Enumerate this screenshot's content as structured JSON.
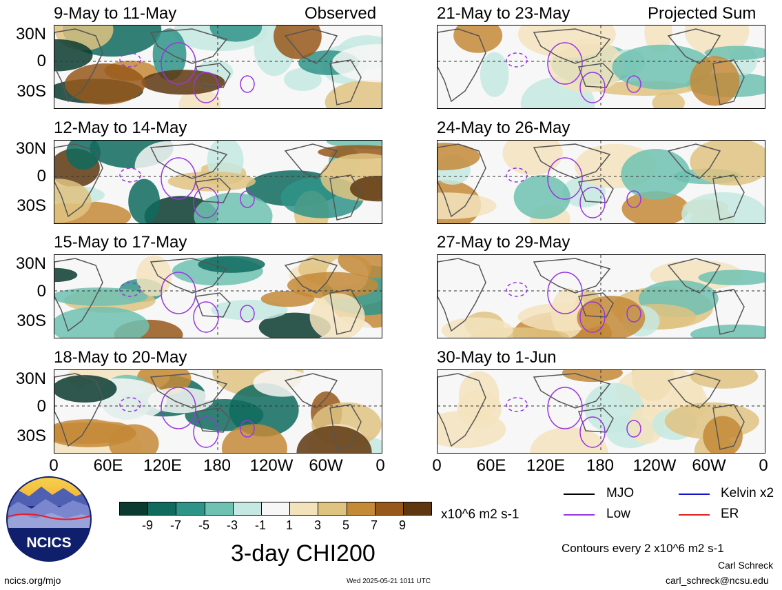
{
  "header": {
    "left_tag": "Observed",
    "right_tag": "Projected Sum"
  },
  "panels_left": [
    {
      "title": "9-May to 11-May"
    },
    {
      "title": "12-May to 14-May"
    },
    {
      "title": "15-May to 17-May"
    },
    {
      "title": "18-May to 20-May"
    }
  ],
  "panels_right": [
    {
      "title": "21-May to 23-May"
    },
    {
      "title": "24-May to 26-May"
    },
    {
      "title": "27-May to 29-May"
    },
    {
      "title": "30-May to 1-Jun"
    }
  ],
  "axes": {
    "lat_labels": [
      "30N",
      "0",
      "30S"
    ],
    "lon_labels": [
      "0",
      "60E",
      "120E",
      "180",
      "120W",
      "60W",
      "0"
    ]
  },
  "colorbar": {
    "ticks": [
      "-9",
      "-7",
      "-5",
      "-3",
      "-1",
      "1",
      "3",
      "5",
      "7",
      "9"
    ],
    "units": "x10^6 m2 s-1",
    "colors": [
      "#0b3b30",
      "#0f6b5e",
      "#2f9488",
      "#6fc1b2",
      "#c5e9e2",
      "#f7f7f7",
      "#f3e3bd",
      "#dfc381",
      "#c48a38",
      "#98581b",
      "#5e3710"
    ]
  },
  "legend": {
    "items": [
      {
        "label": "MJO",
        "color": "#000000"
      },
      {
        "label": "Kelvin x2",
        "color": "#1515cc"
      },
      {
        "label": "Low",
        "color": "#9a35e0"
      },
      {
        "label": "ER",
        "color": "#e02020"
      }
    ],
    "contour_note": "Contours every 2 x10^6 m2 s-1"
  },
  "footer": {
    "main_title": "3-day CHI200",
    "left_url": "ncics.org/mjo",
    "timestamp": "Wed 2025-05-21 1011 UTC",
    "author": "Carl Schreck",
    "email": "carl_schreck@ncsu.edu",
    "logo_text": "NCICS"
  }
}
